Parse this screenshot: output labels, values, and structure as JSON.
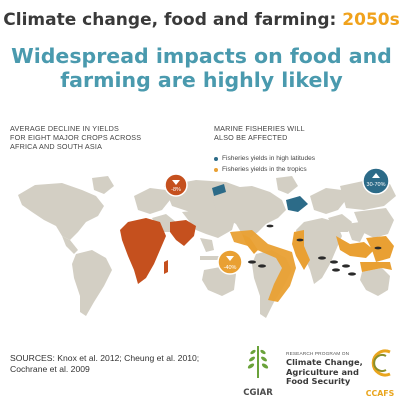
{
  "title": {
    "main": "Climate change, food and farming:",
    "accent": "2050s"
  },
  "headline": {
    "line1": "Widespread impacts on food and",
    "line2": "farming are highly likely"
  },
  "left_panel": {
    "label_line1": "AVERAGE DECLINE IN YIELDS",
    "label_line2": "FOR EIGHT MAJOR CROPS ACROSS",
    "label_line3": "AFRICA AND SOUTH ASIA",
    "badge_value": "-8%"
  },
  "right_panel": {
    "label_line1": "MARINE FISHERIES WILL",
    "label_line2": "ALSO BE AFFECTED",
    "legend": [
      {
        "label": "Fisheries yields in high latitudes",
        "color": "#2c6b88"
      },
      {
        "label": "Fisheries yields in the tropics",
        "color": "#e9a033"
      }
    ],
    "badge_high": "30-70%",
    "badge_tropics": "-40%"
  },
  "sources": {
    "line1": "SOURCES: Knox et al. 2012; Cheung et al. 2010;",
    "line2": "Cochrane et al. 2009"
  },
  "logos": {
    "cgiar": "CGIAR",
    "program_small": "RESEARCH PROGRAM ON",
    "program_line1": "Climate Change,",
    "program_line2": "Agriculture and",
    "program_line3": "Food Security",
    "ccafs": "CCAFS"
  },
  "colors": {
    "land": "#d3cfc4",
    "decline": "#c5501e",
    "teal": "#4a9aae",
    "high_latitude": "#2c6b88",
    "tropics": "#e9a033"
  }
}
